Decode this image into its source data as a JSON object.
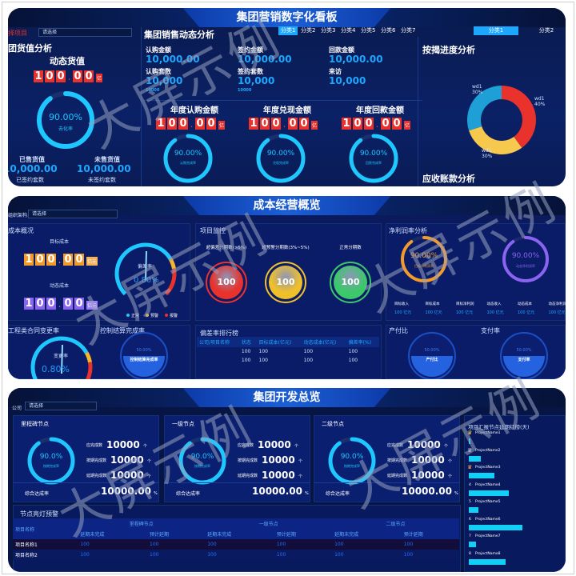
{
  "watermark": "大屏示例",
  "colors": {
    "cyan": "#1ec8ff",
    "red": "#e8322b",
    "orange": "#f39a2b",
    "purple": "#8a63f0",
    "yellow": "#f6c84d",
    "green": "#3cc86a",
    "bg": "#0b1f5a"
  },
  "p1": {
    "title": "集团营销数字化看板",
    "filter_label": "择项目",
    "filter_placeholder": "请选择",
    "stock": {
      "title": "团货值分析",
      "sub": "动态货值",
      "digits": "100.00",
      "unit": "亿",
      "ring_pct": 90,
      "ring_text": "90.00%",
      "ring_label": "去化率",
      "sold_label": "已售货值",
      "sold_value": "10,000.00",
      "unsold_label": "未售货值",
      "unsold_value": "10,000.00",
      "unit2": "亿",
      "signed_label": "已签约套数",
      "unsigned_label": "未签约套数"
    },
    "sales": {
      "title": "集团销售动态分析",
      "tabs": [
        "分类1",
        "分类2",
        "分类3",
        "分类4",
        "分类5",
        "分类6",
        "分类7"
      ],
      "stats": [
        {
          "label": "认购金额",
          "value": "10,000.00",
          "unit": "亿",
          "label2": "认购套数",
          "value2": "10,000",
          "unit2": "套",
          "small": "10000"
        },
        {
          "label": "签约金额",
          "value": "10,000.00",
          "unit": "亿",
          "label2": "签约套数",
          "value2": "10,000",
          "unit2": "套",
          "small": "10000"
        },
        {
          "label": "回款金额",
          "value": "10,000.00",
          "unit": "万",
          "label2": "来访",
          "value2": "10,000",
          "unit2": "人",
          "small": ""
        }
      ],
      "annual": [
        {
          "title": "年度认购金额",
          "digits": "100.00",
          "unit": "亿",
          "pct": 90,
          "text": "90.00%",
          "label": "认购完成率"
        },
        {
          "title": "年度兑现金额",
          "digits": "100.00",
          "unit": "亿",
          "pct": 90,
          "text": "90.00%",
          "label": "兑现完成率"
        },
        {
          "title": "年度回款金额",
          "digits": "100.00",
          "unit": "亿",
          "pct": 90,
          "text": "90.00%",
          "label": "回款完成率"
        }
      ]
    },
    "right_tabs": [
      "分类1",
      "分类2"
    ],
    "mortgage": {
      "title": "按揭进度分析",
      "slices": [
        {
          "name": "wd1",
          "pct": 40,
          "label": "40%",
          "color": "#e8322b"
        },
        {
          "name": "wd1",
          "pct": 30,
          "label": "30%",
          "color": "#f6c84d"
        },
        {
          "name": "wd1",
          "pct": 30,
          "label": "30%",
          "color": "#1e9fd6"
        }
      ]
    },
    "receivable_title": "应收账款分析"
  },
  "p2": {
    "title": "成本经营概览",
    "filter_label": "组织架构",
    "filter_placeholder": "请选择",
    "cost": {
      "title": "成本概况",
      "target_label": "目标成本",
      "target_digits": "100.00",
      "unit": "亿元",
      "dynamic_label": "动态成本",
      "dynamic_digits": "100.00",
      "gauge_label": "偏差率",
      "gauge_value": "0.80%",
      "gauge_pct": 0.8,
      "legend": [
        "正常",
        "预警",
        "报警"
      ]
    },
    "monitor": {
      "title": "项目监控",
      "items": [
        {
          "label": "超偏差分期数(>5%)",
          "value": "100",
          "color": "#e8322b"
        },
        {
          "label": "超预警分期数(3%~5%)",
          "value": "100",
          "color": "#f0c02a"
        },
        {
          "label": "正常分期数",
          "value": "100",
          "color": "#3cc86a"
        }
      ]
    },
    "profit": {
      "title": "净利润率分析",
      "rings": [
        {
          "text": "90.00%",
          "label": "目标净利润率",
          "pct": 90,
          "color": "#f39a2b"
        },
        {
          "text": "90.00%",
          "label": "动态净利润率",
          "pct": 90,
          "color": "#8a63f0"
        }
      ],
      "metrics": [
        {
          "label": "目标收入",
          "value": "100 亿元"
        },
        {
          "label": "目标成本",
          "value": "100 亿元"
        },
        {
          "label": "目标净利润",
          "value": "100 亿元"
        },
        {
          "label": "动态收入",
          "value": "100 亿元"
        },
        {
          "label": "动态成本",
          "value": "100 亿元"
        },
        {
          "label": "动态净利润",
          "value": "100 亿元"
        }
      ]
    },
    "change": {
      "title": "工程类合同变更率",
      "gauge_label": "变更率",
      "gauge_value": "0.80%"
    },
    "settle": {
      "title": "控制结算完成率",
      "value": "50.00%",
      "label": "控制结算完成率"
    },
    "rank": {
      "title": "偏差率排行榜",
      "headers": [
        "公司/项目名称",
        "状态",
        "目标成本(亿元)",
        "动态成本(亿元)",
        "偏差率(%)"
      ],
      "rows": [
        [
          "",
          "100",
          "100",
          "100",
          "100"
        ],
        [
          "",
          "100",
          "100",
          "100",
          "100"
        ]
      ]
    },
    "output": {
      "title": "产付比",
      "value": "50.00%",
      "label": "产付比"
    },
    "pay": {
      "title": "支付率",
      "value": "50.00%",
      "label": "支付率"
    }
  },
  "p3": {
    "title": "集团开发总览",
    "filter_label": "公司",
    "filter_placeholder": "请选择",
    "cards": [
      {
        "title": "里程碑节点",
        "ring": "90.0%",
        "ring_label": "按期完成率",
        "pct": 90,
        "rows": [
          {
            "label": "应完成数",
            "value": "10000",
            "unit": "个"
          },
          {
            "label": "按期完成数",
            "value": "10000",
            "unit": "个"
          },
          {
            "label": "延期完成数",
            "value": "10000",
            "unit": "个"
          }
        ],
        "total_label": "综合达成率",
        "total": "10000.00",
        "total_unit": "%"
      },
      {
        "title": "一级节点",
        "ring": "90.0%",
        "ring_label": "按期完成率",
        "pct": 90,
        "rows": [
          {
            "label": "应完成数",
            "value": "10000",
            "unit": "个"
          },
          {
            "label": "按期完成数",
            "value": "10000",
            "unit": "个"
          },
          {
            "label": "延期完成数",
            "value": "10000",
            "unit": "个"
          }
        ],
        "total_label": "综合达成率",
        "total": "10000.00",
        "total_unit": "%"
      },
      {
        "title": "二级节点",
        "ring": "90.0%",
        "ring_label": "按期完成率",
        "pct": 90,
        "rows": [
          {
            "label": "应完成数",
            "value": "10000",
            "unit": "个"
          },
          {
            "label": "按期完成数",
            "value": "10000",
            "unit": "个"
          },
          {
            "label": "延期完成数",
            "value": "10000",
            "unit": "个"
          }
        ],
        "total_label": "综合达成率",
        "total": "10000.00",
        "total_unit": "%"
      }
    ],
    "warning": {
      "title": "节点亮灯预警",
      "col0": "项目名称",
      "groups": [
        "里程碑节点",
        "一级节点",
        "二级节点"
      ],
      "sub": [
        "延期未完成",
        "预计延期"
      ],
      "rows": [
        {
          "name": "项目名称1",
          "values": [
            "100",
            "100",
            "100",
            "100",
            "100",
            "100"
          ]
        },
        {
          "name": "项目名称2",
          "values": [
            "100",
            "100",
            "100",
            "100",
            "100",
            "100"
          ]
        }
      ]
    },
    "ranking": {
      "title": "项目汇报节点延期红榜(天)",
      "items": [
        {
          "rank": "1",
          "name": "ProjectName1",
          "value": 1
        },
        {
          "rank": "2",
          "name": "ProjectName2",
          "value": 15
        },
        {
          "rank": "3",
          "name": "ProjectName3",
          "value": 32
        },
        {
          "rank": "4",
          "name": "ProjectName4",
          "value": 49
        },
        {
          "rank": "5",
          "name": "ProjectName5",
          "value": 12
        },
        {
          "rank": "6",
          "name": "ProjectName6",
          "value": 66
        },
        {
          "rank": "7",
          "name": "ProjectName7",
          "value": 9
        },
        {
          "rank": "8",
          "name": "ProjectName8",
          "value": 45
        }
      ]
    }
  }
}
